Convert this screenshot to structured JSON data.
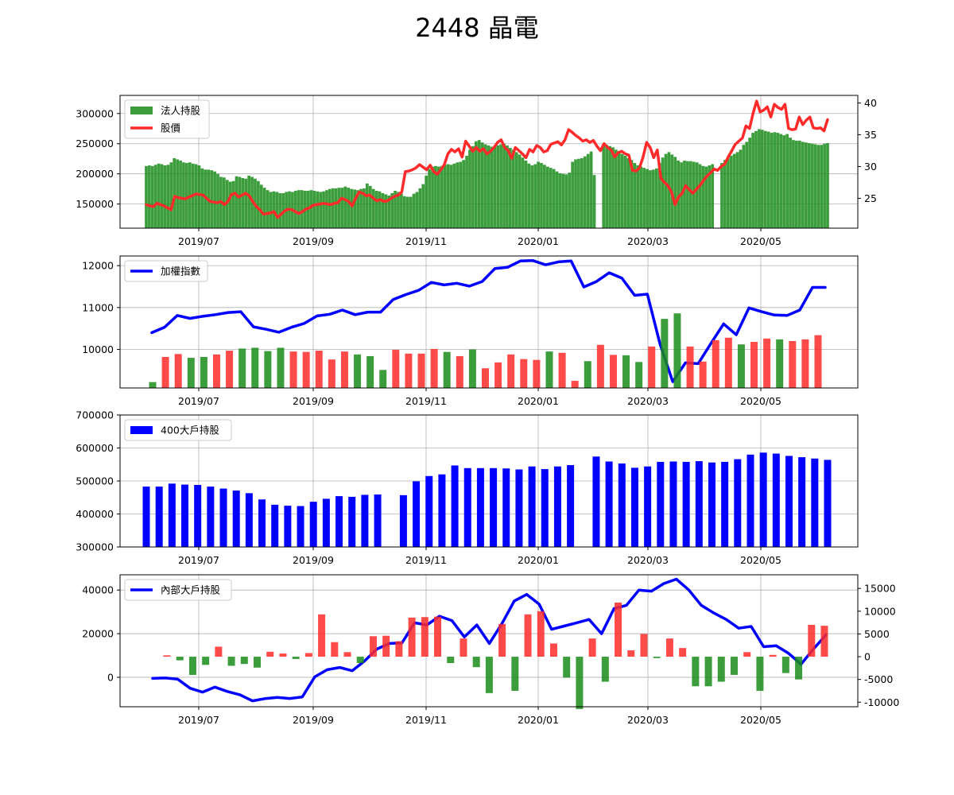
{
  "title": "2448 晶電",
  "colors": {
    "green": "#1a8c1a",
    "red": "#ff2a2a",
    "blue": "#0000ff",
    "grid": "#b0b0b0"
  },
  "x_tick_labels": [
    "2019/07",
    "2019/09",
    "2019/11",
    "2020/01",
    "2020/03",
    "2020/05"
  ],
  "chart_data": [
    {
      "type": "bar",
      "panel": "top",
      "legend": [
        "法人持股",
        "股價"
      ],
      "y_ticks_left": [
        "150000",
        "200000",
        "250000",
        "300000"
      ],
      "y_ticks_right": [
        "25",
        "30",
        "35",
        "40"
      ],
      "ylim_left": [
        110000,
        330000
      ],
      "ylim_right": [
        20.3,
        41.2
      ],
      "series": [
        {
          "name": "法人持股",
          "kind": "bar",
          "axis": "left",
          "values": [
            213000,
            214000,
            213000,
            215000,
            217000,
            216000,
            214000,
            215000,
            219000,
            226000,
            224000,
            222000,
            219000,
            218000,
            219000,
            217000,
            216000,
            214000,
            209000,
            207000,
            207000,
            206000,
            204000,
            200000,
            195000,
            194000,
            190000,
            187000,
            188000,
            196000,
            195000,
            193000,
            192000,
            197000,
            195000,
            192000,
            188000,
            182000,
            177000,
            173000,
            170000,
            171000,
            170000,
            168000,
            168000,
            170000,
            171000,
            170000,
            172000,
            173000,
            173000,
            172000,
            172000,
            173000,
            172000,
            171000,
            170000,
            171000,
            173000,
            175000,
            176000,
            176000,
            177000,
            177000,
            179000,
            177000,
            175000,
            174000,
            173000,
            175000,
            176000,
            184000,
            180000,
            175000,
            172000,
            171000,
            168000,
            166000,
            164000,
            168000,
            172000,
            170000,
            167000,
            163000,
            162000,
            162000,
            167000,
            170000,
            176000,
            183000,
            197000,
            208000,
            212000,
            213000,
            212000,
            213000,
            215000,
            216000,
            215000,
            217000,
            219000,
            220000,
            223000,
            230000,
            240000,
            246000,
            254000,
            256000,
            252000,
            249000,
            247000,
            245000,
            246000,
            247000,
            249000,
            250000,
            247000,
            243000,
            240000,
            236000,
            232000,
            227000,
            222000,
            217000,
            214000,
            216000,
            220000,
            218000,
            215000,
            212000,
            210000,
            208000,
            204000,
            201000,
            200000,
            199000,
            202000,
            220000,
            224000,
            225000,
            226000,
            229000,
            233000,
            237000,
            198000,
            null,
            null,
            250000,
            248000,
            246000,
            244000,
            240000,
            236000,
            233000,
            230000,
            226000,
            223000,
            218000,
            214000,
            212000,
            210000,
            208000,
            206000,
            207000,
            209000,
            218000,
            227000,
            233000,
            236000,
            232000,
            228000,
            222000,
            219000,
            222000,
            221000,
            221000,
            220000,
            219000,
            216000,
            213000,
            212000,
            214000,
            216000,
            null,
            null,
            218000,
            223000,
            226000,
            230000,
            233000,
            236000,
            240000,
            248000,
            253000,
            260000,
            268000,
            271000,
            274000,
            273000,
            271000,
            270000,
            268000,
            269000,
            268000,
            266000,
            264000,
            266000,
            260000,
            256000,
            255000,
            255000,
            253000,
            252000,
            251000,
            250000,
            249000,
            248000,
            248000,
            250000,
            251000
          ]
        },
        {
          "name": "股價",
          "kind": "line",
          "axis": "right",
          "values": [
            24.0,
            23.8,
            23.7,
            24.2,
            24.0,
            23.8,
            23.5,
            23.2,
            25.3,
            25.1,
            25.0,
            24.9,
            25.2,
            25.4,
            25.7,
            25.6,
            25.5,
            25.0,
            24.5,
            24.4,
            24.3,
            24.5,
            24.0,
            24.5,
            25.6,
            25.8,
            25.2,
            25.5,
            25.8,
            25.4,
            24.5,
            23.7,
            23.2,
            22.5,
            22.6,
            22.7,
            22.9,
            22.0,
            22.5,
            23.0,
            23.3,
            23.2,
            22.9,
            22.6,
            22.9,
            23.3,
            23.5,
            23.9,
            24.0,
            24.1,
            24.2,
            24.1,
            24.0,
            24.2,
            24.3,
            25.0,
            24.8,
            24.5,
            23.8,
            25.0,
            26.0,
            25.8,
            25.4,
            25.5,
            25.0,
            24.6,
            24.8,
            24.5,
            24.6,
            25.0,
            25.3,
            25.5,
            26.0,
            29.2,
            29.3,
            29.5,
            29.8,
            30.3,
            29.9,
            29.5,
            30.2,
            29.2,
            28.8,
            29.5,
            30.3,
            32.0,
            32.7,
            32.3,
            32.8,
            31.5,
            34.0,
            33.2,
            32.4,
            33.0,
            32.4,
            32.8,
            32.0,
            32.4,
            33.0,
            33.8,
            34.2,
            33.0,
            32.5,
            31.3,
            33.0,
            32.5,
            32.0,
            31.4,
            32.7,
            32.3,
            33.3,
            33.0,
            32.3,
            32.5,
            33.5,
            33.7,
            33.9,
            33.4,
            34.2,
            35.8,
            35.4,
            34.9,
            34.5,
            34.0,
            34.2,
            33.8,
            34.1,
            33.2,
            32.5,
            33.6,
            33.0,
            32.6,
            31.5,
            32.2,
            32.4,
            32.0,
            31.8,
            29.4,
            29.3,
            29.8,
            31.5,
            33.8,
            33.0,
            31.4,
            32.6,
            28.2,
            27.5,
            27.0,
            26.0,
            24.0,
            25.2,
            25.8,
            27.0,
            26.4,
            25.8,
            26.4,
            27.0,
            27.8,
            28.5,
            29.0,
            29.6,
            29.4,
            30.0,
            30.4,
            31.5,
            32.5,
            33.5,
            34.0,
            34.5,
            36.4,
            36.0,
            38.4,
            40.3,
            38.6,
            38.9,
            39.4,
            37.8,
            39.8,
            39.3,
            39.0,
            39.8,
            36.0,
            35.8,
            35.9,
            37.8,
            36.6,
            37.3,
            37.8,
            36.1,
            36.0,
            36.1,
            35.6,
            37.4
          ]
        }
      ]
    },
    {
      "type": "bar",
      "panel": "second",
      "legend": [
        "加權指數"
      ],
      "y_ticks_left": [
        "10000",
        "11000",
        "12000"
      ],
      "ylim_left": [
        9080,
        12230
      ],
      "series": [
        {
          "name": "加權指數",
          "kind": "line",
          "axis": "left",
          "values": [
            10400,
            10530,
            10810,
            10740,
            10790,
            10830,
            10880,
            10900,
            10540,
            10480,
            10410,
            10530,
            10620,
            10800,
            10840,
            10940,
            10830,
            10890,
            10890,
            11190,
            11310,
            11410,
            11600,
            11540,
            11580,
            11510,
            11620,
            11930,
            11960,
            12110,
            12120,
            12020,
            12090,
            12110,
            11490,
            11620,
            11830,
            11700,
            11290,
            11320,
            10130,
            9230,
            9680,
            9660,
            10140,
            10610,
            10350,
            10990,
            10900,
            10820,
            10810,
            10940,
            11480,
            11480
          ]
        },
        {
          "name": "volume",
          "kind": "bar",
          "axis": "left",
          "values": [
            9220,
            9820,
            9890,
            9800,
            9820,
            9880,
            9970,
            10020,
            10040,
            9960,
            10040,
            9950,
            9940,
            9970,
            9760,
            9950,
            9880,
            9840,
            9510,
            9990,
            9900,
            9900,
            10010,
            9940,
            9840,
            10000,
            9550,
            9690,
            9880,
            9770,
            9750,
            9950,
            9920,
            9250,
            9720,
            10110,
            9870,
            9860,
            9700,
            10070,
            10730,
            10860,
            10070,
            9710,
            10220,
            10280,
            10120,
            10180,
            10260,
            10240,
            10200,
            10240,
            10340
          ],
          "colors": [
            "g",
            "r",
            "r",
            "g",
            "g",
            "r",
            "r",
            "g",
            "g",
            "g",
            "g",
            "r",
            "r",
            "r",
            "r",
            "r",
            "g",
            "g",
            "g",
            "r",
            "r",
            "r",
            "r",
            "g",
            "r",
            "g",
            "r",
            "r",
            "r",
            "r",
            "r",
            "g",
            "r",
            "r",
            "g",
            "r",
            "r",
            "g",
            "g",
            "r",
            "g",
            "g",
            "r",
            "r",
            "r",
            "r",
            "g",
            "r",
            "r",
            "g",
            "r",
            "r",
            "r"
          ]
        }
      ]
    },
    {
      "type": "bar",
      "panel": "third",
      "legend": [
        "400大戶持股"
      ],
      "y_ticks_left": [
        "300000",
        "400000",
        "500000",
        "600000",
        "700000"
      ],
      "ylim_left": [
        300000,
        700000
      ],
      "series": [
        {
          "name": "400大戶持股",
          "kind": "bar",
          "axis": "left",
          "values": [
            483000,
            483000,
            492000,
            489000,
            488000,
            483000,
            477000,
            471000,
            463000,
            444000,
            428000,
            425000,
            424000,
            437000,
            446000,
            454000,
            452000,
            458000,
            459000,
            null,
            457000,
            499000,
            515000,
            520000,
            547000,
            539000,
            539000,
            539000,
            538000,
            535000,
            544000,
            536000,
            544000,
            548000,
            null,
            574000,
            559000,
            553000,
            540000,
            544000,
            558000,
            559000,
            558000,
            560000,
            556000,
            558000,
            566000,
            580000,
            586000,
            583000,
            576000,
            572000,
            568000,
            564000
          ]
        }
      ]
    },
    {
      "type": "bar",
      "panel": "bottom",
      "legend": [
        "內部大戶持股"
      ],
      "y_ticks_left": [
        "0",
        "20000",
        "40000"
      ],
      "y_ticks_right": [
        "-10000",
        "-5000",
        "0",
        "5000",
        "10000",
        "15000"
      ],
      "ylim_left": [
        -13500,
        47000
      ],
      "ylim_right": [
        -11000,
        18000
      ],
      "series": [
        {
          "name": "內部大戶持股",
          "kind": "line",
          "axis": "left",
          "values": [
            -500,
            -300,
            -800,
            -5000,
            -6800,
            -4500,
            -6500,
            -8000,
            -10800,
            -9800,
            -9200,
            -9700,
            -9000,
            200,
            3500,
            4500,
            3000,
            7500,
            13000,
            15500,
            15800,
            25000,
            24000,
            28000,
            26000,
            18500,
            24000,
            15500,
            24500,
            35000,
            38000,
            33500,
            22000,
            23500,
            25000,
            26500,
            20000,
            31500,
            33000,
            40000,
            39500,
            43000,
            45000,
            40000,
            33000,
            29500,
            26500,
            22500,
            23300,
            14000,
            14500,
            11000,
            6000,
            13000,
            19500
          ]
        },
        {
          "name": "change",
          "kind": "bar",
          "axis": "right",
          "values": [
            300,
            -800,
            -4000,
            -1800,
            2200,
            -2000,
            -1600,
            -2400,
            1100,
            700,
            -500,
            800,
            9300,
            3200,
            1000,
            -1400,
            4500,
            4600,
            3400,
            8600,
            8700,
            8800,
            -1400,
            4000,
            -2300,
            -8000,
            7200,
            -7500,
            9300,
            10000,
            2900,
            -4600,
            -11500,
            4000,
            -5500,
            11900,
            1400,
            5000,
            -300,
            4000,
            1900,
            -6500,
            -6500,
            -5500,
            -4000,
            1000,
            -7500,
            400,
            -3600,
            -5000,
            7000,
            6800
          ],
          "colors": [
            "r",
            "g",
            "g",
            "g",
            "r",
            "g",
            "g",
            "g",
            "r",
            "r",
            "g",
            "r",
            "r",
            "r",
            "r",
            "g",
            "r",
            "r",
            "r",
            "r",
            "r",
            "r",
            "g",
            "r",
            "g",
            "g",
            "r",
            "g",
            "r",
            "r",
            "r",
            "g",
            "g",
            "r",
            "g",
            "r",
            "r",
            "r",
            "g",
            "r",
            "r",
            "g",
            "g",
            "g",
            "g",
            "r",
            "g",
            "r",
            "g",
            "g",
            "r",
            "r"
          ]
        }
      ]
    }
  ]
}
